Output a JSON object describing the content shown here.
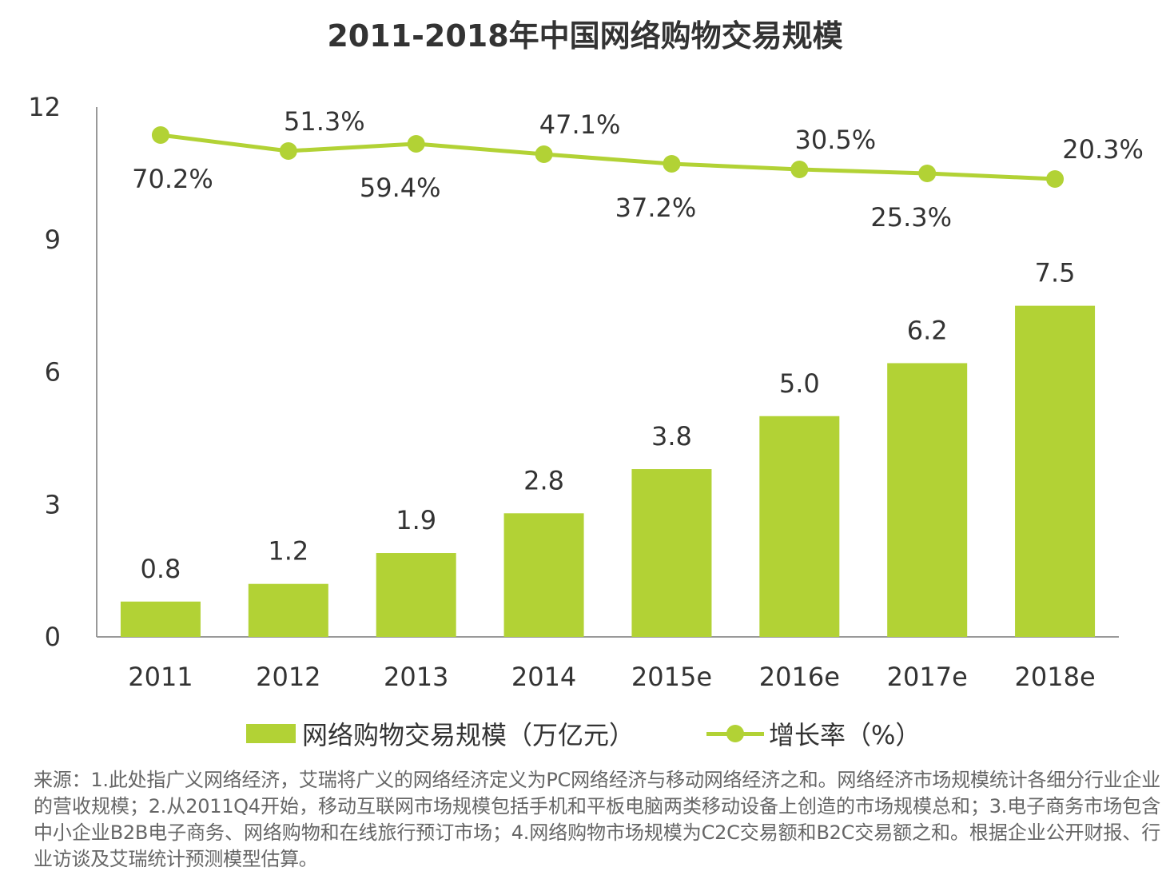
{
  "chart_data": {
    "type": "bar",
    "title": "2011-2018年中国网络购物交易规模",
    "categories": [
      "2011",
      "2012",
      "2013",
      "2014",
      "2015e",
      "2016e",
      "2017e",
      "2018e"
    ],
    "series": [
      {
        "name": "网络购物交易规模（万亿元）",
        "type": "bar",
        "values": [
          0.8,
          1.2,
          1.9,
          2.8,
          3.8,
          5.0,
          6.2,
          7.5
        ],
        "labels": [
          "0.8",
          "1.2",
          "1.9",
          "2.8",
          "3.8",
          "5.0",
          "6.2",
          "7.5"
        ],
        "color": "#b2d235"
      },
      {
        "name": "增长率（%）",
        "type": "line",
        "values": [
          70.2,
          51.3,
          59.4,
          47.1,
          37.2,
          30.5,
          25.3,
          20.3
        ],
        "labels": [
          "70.2%",
          "51.3%",
          "59.4%",
          "47.1%",
          "37.2%",
          "30.5%",
          "25.3%",
          "20.3%"
        ],
        "label_positions": [
          "below",
          "above",
          "below",
          "above",
          "below",
          "above",
          "below",
          "above"
        ],
        "color": "#b2d235"
      }
    ],
    "y_ticks": [
      "0",
      "3",
      "6",
      "9",
      "12"
    ],
    "ylim": [
      0,
      12
    ],
    "grid": false,
    "legend_position": "bottom"
  },
  "legend": {
    "bar_label": "网络购物交易规模（万亿元）",
    "line_label": "增长率（%）"
  },
  "source_note": "来源：1.此处指广义网络经济，艾瑞将广义的网络经济定义为PC网络经济与移动网络经济之和。网络经济市场规模统计各细分行业企业的营收规模；2.从2011Q4开始，移动互联网市场规模包括手机和平板电脑两类移动设备上创造的市场规模总和；3.电子商务市场包含中小企业B2B电子商务、网络购物和在线旅行预订市场；4.网络购物市场规模为C2C交易额和B2C交易额之和。根据企业公开财报、行业访谈及艾瑞统计预测模型估算。"
}
